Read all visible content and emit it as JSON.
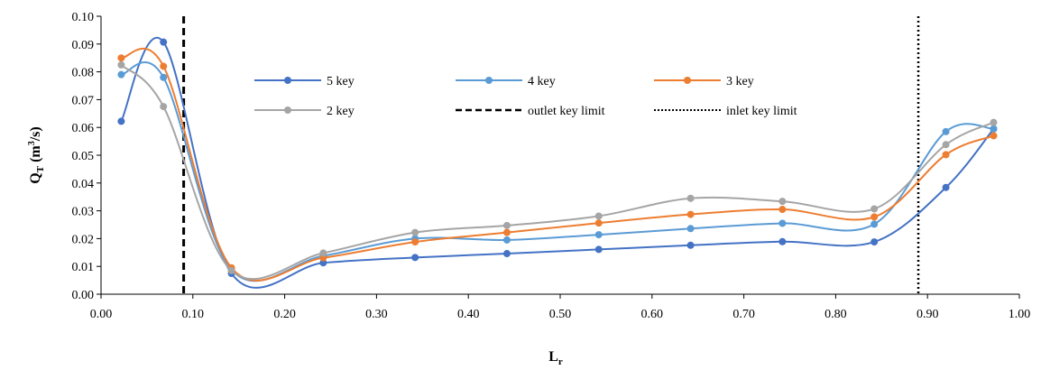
{
  "chart_data": {
    "type": "line",
    "xlabel": "L",
    "xlabel_sub": "r",
    "ylabel": "Q",
    "ylabel_sub": "T",
    "ylabel_unit_pre": " (m",
    "ylabel_unit_sup": "3",
    "ylabel_unit_post": "/s)",
    "xlim": [
      0,
      1
    ],
    "ylim": [
      0,
      0.1
    ],
    "x_ticks": [
      "0.00",
      "0.10",
      "0.20",
      "0.30",
      "0.40",
      "0.50",
      "0.60",
      "0.70",
      "0.80",
      "0.90",
      "1.00"
    ],
    "y_ticks": [
      "0.00",
      "0.01",
      "0.02",
      "0.03",
      "0.04",
      "0.05",
      "0.06",
      "0.07",
      "0.08",
      "0.09",
      "0.10"
    ],
    "x": [
      0.022,
      0.068,
      0.142,
      0.242,
      0.342,
      0.442,
      0.542,
      0.642,
      0.742,
      0.842,
      0.92,
      0.972
    ],
    "series": [
      {
        "name": "5 key",
        "color": "#4472C4",
        "values": [
          0.0622,
          0.0907,
          0.0075,
          0.0113,
          0.0132,
          0.0146,
          0.0161,
          0.0176,
          0.0189,
          0.0188,
          0.0384,
          0.0595
        ]
      },
      {
        "name": "4 key",
        "color": "#5B9BD5",
        "values": [
          0.079,
          0.078,
          0.0088,
          0.0138,
          0.02,
          0.0195,
          0.0214,
          0.0236,
          0.0255,
          0.0252,
          0.0585,
          0.0595
        ]
      },
      {
        "name": "3 key",
        "color": "#ED7D31",
        "values": [
          0.085,
          0.082,
          0.0095,
          0.0131,
          0.0188,
          0.0222,
          0.0256,
          0.0287,
          0.0305,
          0.0278,
          0.0502,
          0.057
        ]
      },
      {
        "name": "2 key",
        "color": "#A5A5A5",
        "values": [
          0.0825,
          0.0675,
          0.0085,
          0.0148,
          0.0222,
          0.0247,
          0.0281,
          0.0345,
          0.0334,
          0.0307,
          0.0538,
          0.0618
        ]
      }
    ],
    "reference_lines": [
      {
        "name": "outlet key limit",
        "x": 0.09,
        "style": "dashed"
      },
      {
        "name": "inlet key limit",
        "x": 0.89,
        "style": "dotted"
      }
    ],
    "grid": false,
    "legend": "inside-top"
  }
}
